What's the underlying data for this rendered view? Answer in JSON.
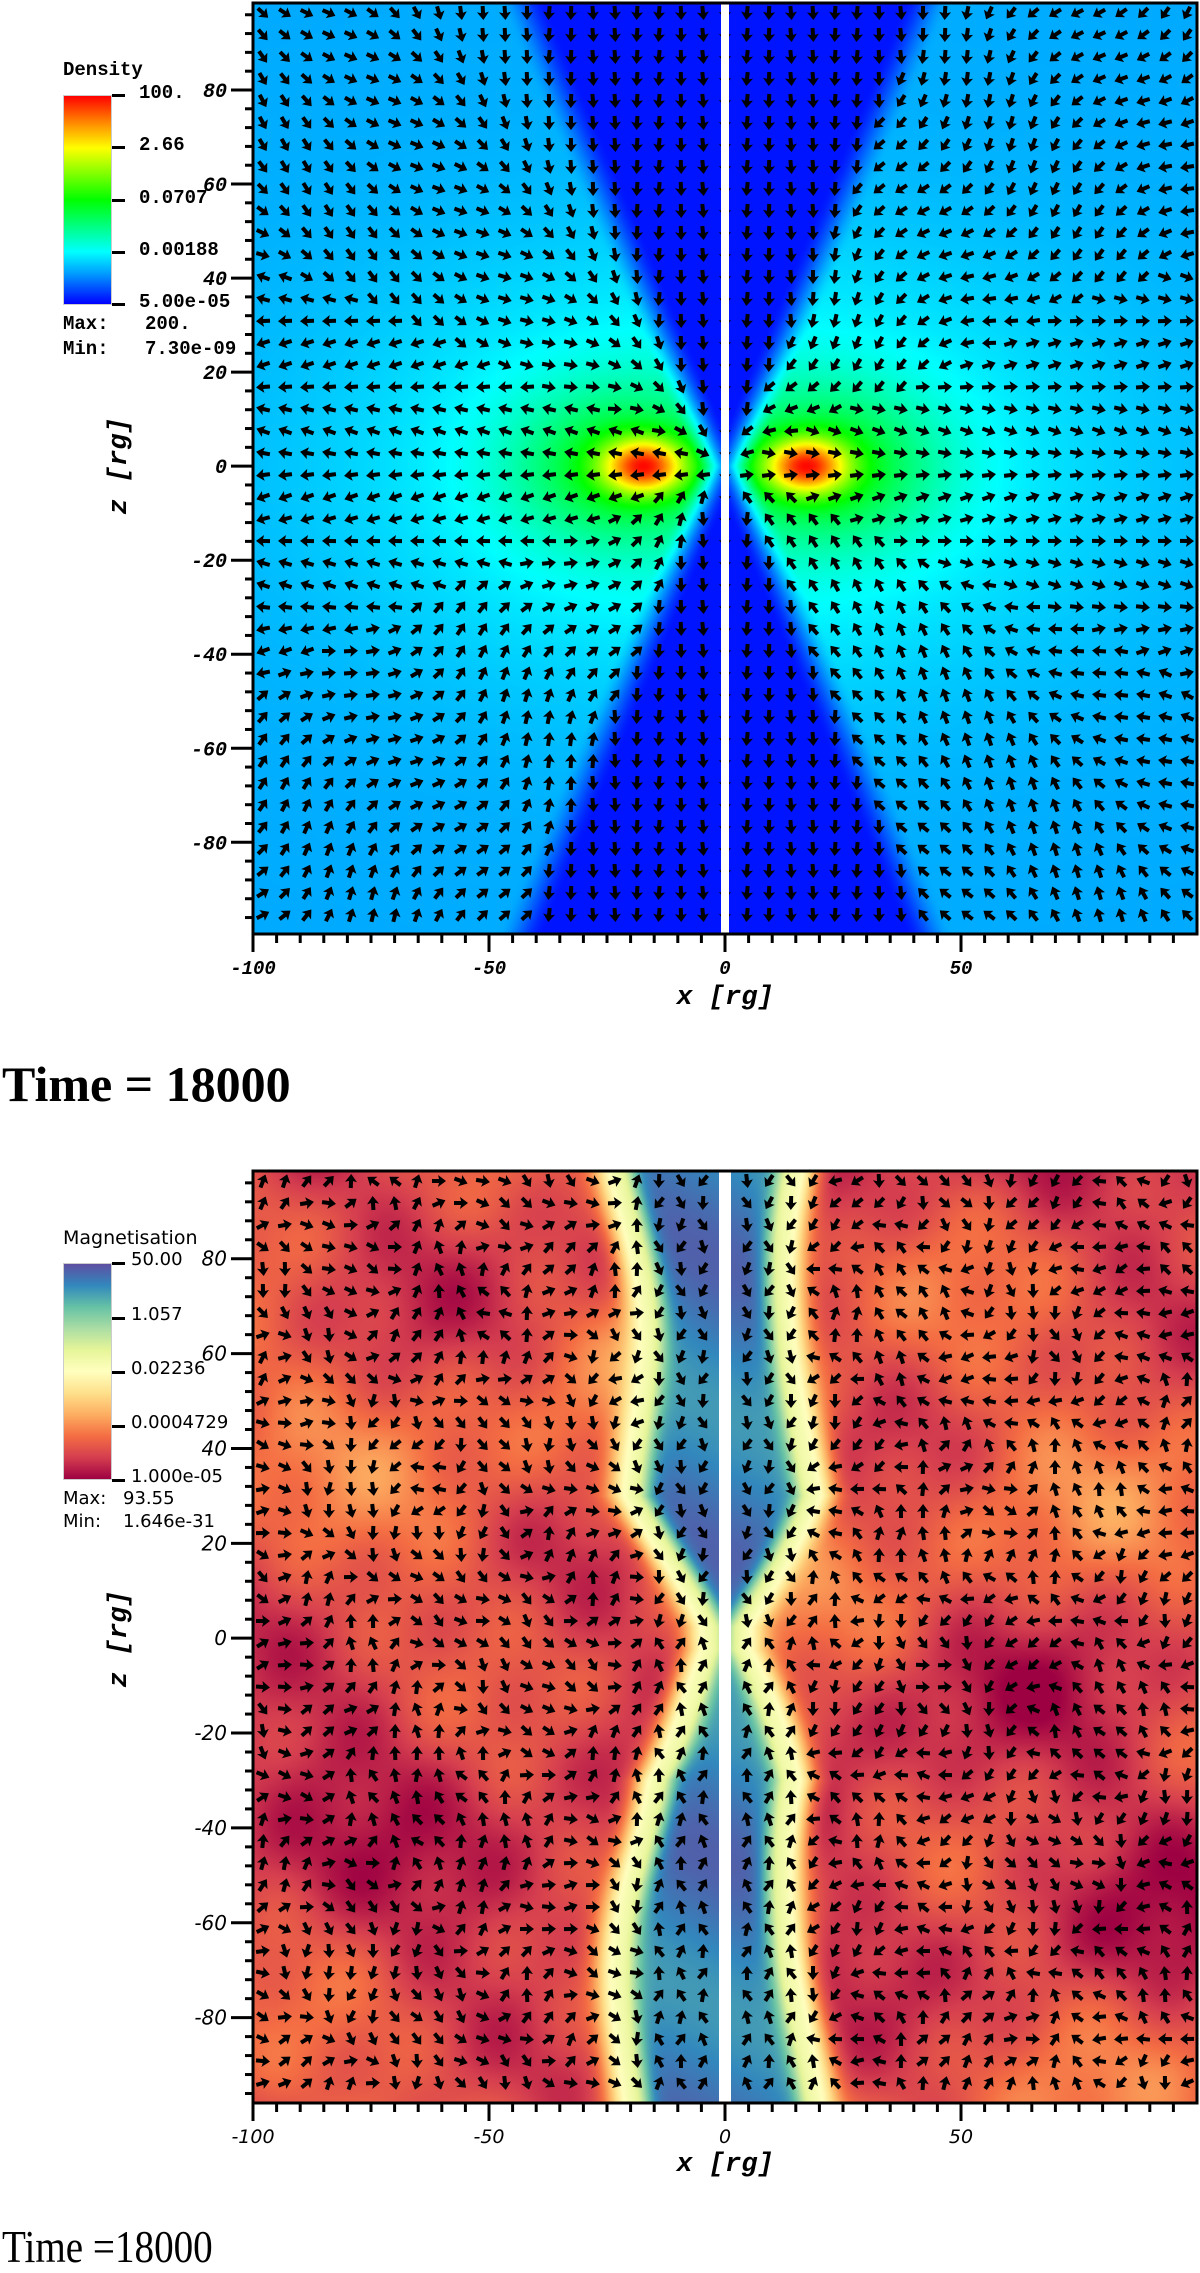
{
  "chart_data": [
    {
      "type": "heatmap",
      "xlabel": "x [rg]",
      "ylabel": "z [rg]",
      "xlim": [
        -100,
        100
      ],
      "ylim": [
        -99.5,
        98.5
      ],
      "x_ticks": [
        "-100",
        "-50",
        "0",
        "50"
      ],
      "x_tick_values": [
        -100,
        -50,
        0,
        50
      ],
      "y_ticks": [
        "-80",
        "-60",
        "-40",
        "-20",
        "0",
        "20",
        "40",
        "60",
        "80"
      ],
      "y_tick_values": [
        -80,
        -60,
        -40,
        -20,
        0,
        20,
        40,
        60,
        80
      ],
      "grid": false,
      "vector_overlay": true,
      "colorbar": {
        "label": "Density",
        "scale": "log",
        "colormap": [
          "#0000ff",
          "#00ffff",
          "#00ff00",
          "#ffff00",
          "#ff0000"
        ],
        "ticks": [
          "100.",
          "2.66",
          "0.0707",
          "0.00188",
          "5.00e-05"
        ],
        "max_label": "Max:",
        "max": "200.",
        "min_label": "Min:",
        "min": "7.30e-09"
      },
      "caption": "Time = 18000"
    },
    {
      "type": "heatmap",
      "xlabel": "x [rg]",
      "ylabel": "z [rg]",
      "xlim": [
        -100,
        100
      ],
      "ylim": [
        -98,
        98.5
      ],
      "x_ticks": [
        "-100",
        "-50",
        "0",
        "50"
      ],
      "x_tick_values": [
        -100,
        -50,
        0,
        50
      ],
      "y_ticks": [
        "-80",
        "-60",
        "-40",
        "-20",
        "0",
        "20",
        "40",
        "60",
        "80"
      ],
      "y_tick_values": [
        -80,
        -60,
        -40,
        -20,
        0,
        20,
        40,
        60,
        80
      ],
      "grid": false,
      "vector_overlay": true,
      "colorbar": {
        "label": "Magnetisation",
        "scale": "log",
        "colormap": [
          "#9e0142",
          "#f46d43",
          "#ffffbf",
          "#66c2a5",
          "#5e4fa2"
        ],
        "ticks": [
          "50.00",
          "1.057",
          "0.02236",
          "0.0004729",
          "1.000e-05"
        ],
        "max_label": "Max:",
        "max": "93.55",
        "min_label": "Min:",
        "min": "1.646e-31"
      },
      "caption": "Time =18000"
    }
  ]
}
